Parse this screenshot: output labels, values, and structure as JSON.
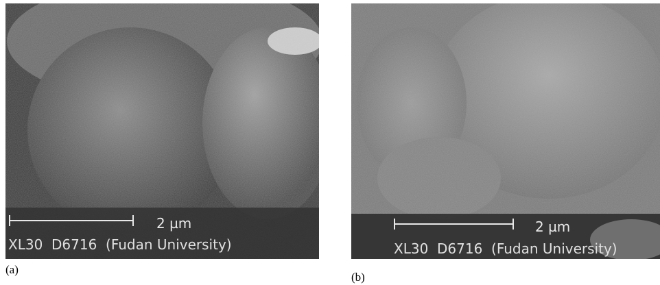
{
  "panels": [
    {
      "label": "(a)",
      "scale_bar": "2 µm",
      "info": "XL30  D6716  (Fudan University)"
    },
    {
      "label": "(b)",
      "scale_bar": "2 µm",
      "info": "XL30  D6716  (Fudan University)"
    }
  ]
}
